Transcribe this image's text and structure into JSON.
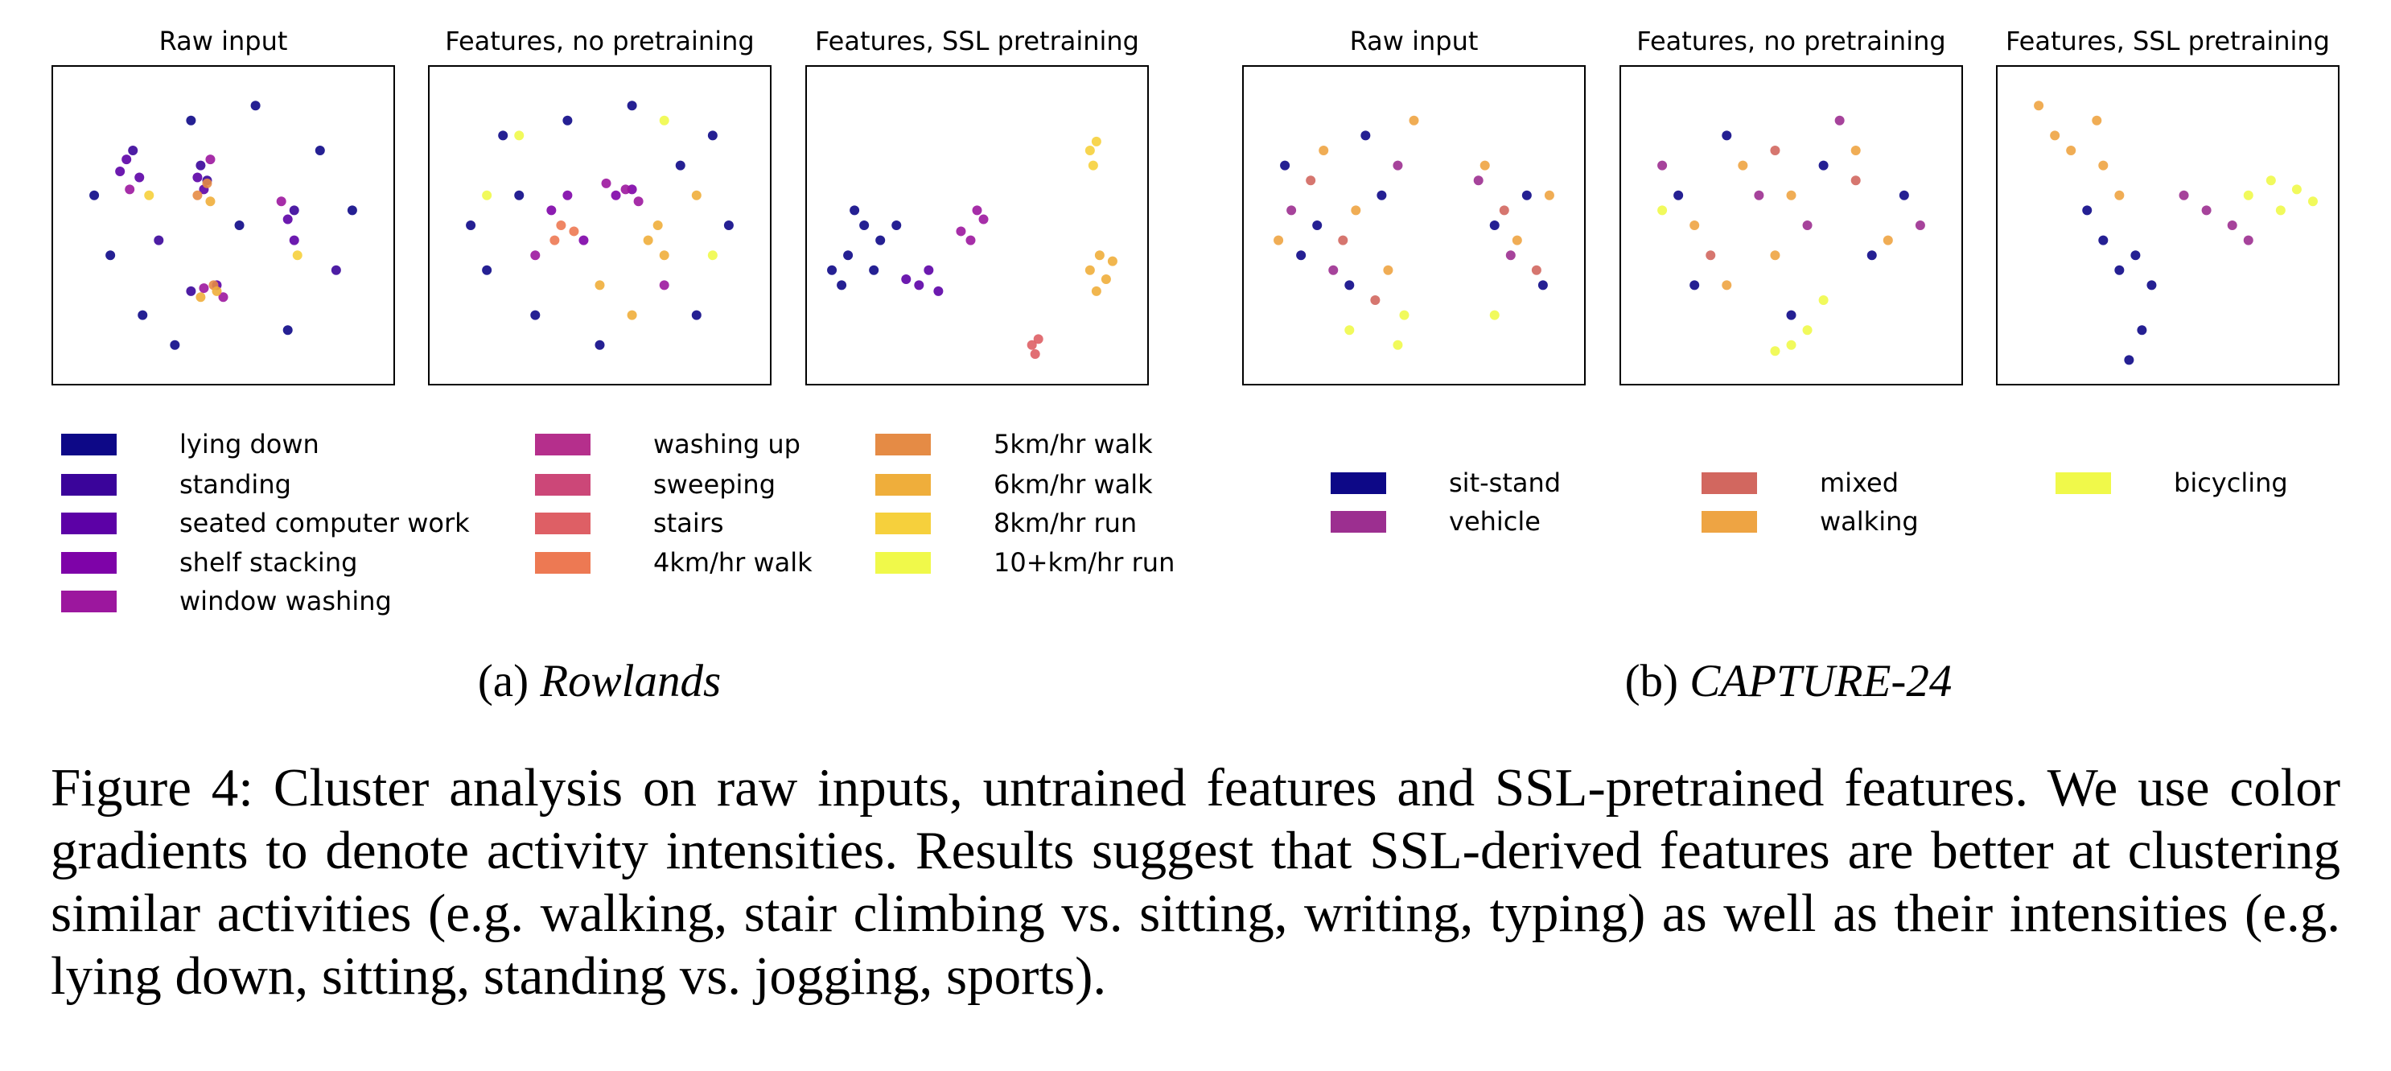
{
  "chart_data": [
    {
      "type": "scatter",
      "title": "Raw input",
      "legend": 0,
      "xlim": [
        0,
        100
      ],
      "ylim": [
        0,
        100
      ],
      "series": [
        {
          "class": 0,
          "x": [
            10,
            25,
            40,
            60,
            80,
            90,
            15,
            55,
            70,
            35
          ],
          "y": [
            60,
            20,
            85,
            90,
            75,
            55,
            40,
            50,
            15,
            10
          ]
        },
        {
          "class": 1,
          "x": [
            43,
            45,
            40,
            22,
            72,
            30,
            85
          ],
          "y": [
            70,
            65,
            28,
            75,
            55,
            45,
            35
          ]
        },
        {
          "class": 2,
          "x": [
            20,
            18,
            24,
            44,
            42,
            70,
            72,
            48
          ],
          "y": [
            72,
            68,
            66,
            62,
            66,
            52,
            45,
            30
          ]
        },
        {
          "class": 4,
          "x": [
            21,
            46,
            68,
            50,
            44
          ],
          "y": [
            62,
            72,
            58,
            26,
            29
          ]
        },
        {
          "class": 9,
          "x": [
            42,
            45,
            47
          ],
          "y": [
            60,
            64,
            30
          ]
        },
        {
          "class": 10,
          "x": [
            46,
            48,
            43
          ],
          "y": [
            58,
            28,
            26
          ]
        },
        {
          "class": 11,
          "x": [
            27,
            73
          ],
          "y": [
            60,
            40
          ]
        }
      ]
    },
    {
      "type": "scatter",
      "title": "Features, no pretraining",
      "legend": 0,
      "xlim": [
        0,
        100
      ],
      "ylim": [
        0,
        100
      ],
      "series": [
        {
          "class": 0,
          "x": [
            10,
            20,
            30,
            80,
            90,
            85,
            15,
            50,
            60,
            25,
            75,
            40
          ],
          "y": [
            50,
            80,
            20,
            20,
            50,
            80,
            35,
            10,
            90,
            60,
            70,
            85
          ]
        },
        {
          "class": 3,
          "x": [
            35,
            40,
            55,
            60,
            45
          ],
          "y": [
            55,
            60,
            60,
            62,
            45
          ]
        },
        {
          "class": 4,
          "x": [
            58,
            62,
            52,
            30,
            70
          ],
          "y": [
            62,
            58,
            64,
            40,
            30
          ]
        },
        {
          "class": 8,
          "x": [
            38,
            42,
            36
          ],
          "y": [
            50,
            48,
            45
          ]
        },
        {
          "class": 10,
          "x": [
            65,
            70,
            68,
            50,
            60,
            80
          ],
          "y": [
            45,
            40,
            50,
            30,
            20,
            60
          ]
        },
        {
          "class": 12,
          "x": [
            25,
            70,
            15,
            85
          ],
          "y": [
            80,
            85,
            60,
            40
          ]
        }
      ]
    },
    {
      "type": "scatter",
      "title": "Features, SSL pretraining",
      "legend": 0,
      "xlim": [
        0,
        100
      ],
      "ylim": [
        0,
        100
      ],
      "series": [
        {
          "class": 0,
          "x": [
            5,
            10,
            15,
            20,
            8,
            12,
            18,
            25
          ],
          "y": [
            35,
            40,
            50,
            45,
            30,
            55,
            35,
            50
          ]
        },
        {
          "class": 2,
          "x": [
            28,
            32,
            38,
            35
          ],
          "y": [
            32,
            30,
            28,
            35
          ]
        },
        {
          "class": 4,
          "x": [
            45,
            50,
            52,
            48
          ],
          "y": [
            48,
            55,
            52,
            45
          ]
        },
        {
          "class": 7,
          "x": [
            67,
            68,
            69
          ],
          "y": [
            10,
            7,
            12
          ]
        },
        {
          "class": 10,
          "x": [
            85,
            88,
            90,
            87,
            92
          ],
          "y": [
            35,
            40,
            32,
            28,
            38
          ]
        },
        {
          "class": 11,
          "x": [
            85,
            86,
            87
          ],
          "y": [
            75,
            70,
            78
          ]
        }
      ]
    },
    {
      "type": "scatter",
      "title": "Raw input",
      "legend": 1,
      "xlim": [
        0,
        100
      ],
      "ylim": [
        0,
        100
      ],
      "series": [
        {
          "class": 0,
          "x": [
            10,
            20,
            30,
            40,
            15,
            35,
            75,
            85,
            90
          ],
          "y": [
            70,
            50,
            30,
            60,
            40,
            80,
            50,
            60,
            30
          ]
        },
        {
          "class": 1,
          "x": [
            12,
            25,
            45,
            80,
            70
          ],
          "y": [
            55,
            35,
            70,
            40,
            65
          ]
        },
        {
          "class": 2,
          "x": [
            18,
            28,
            38,
            78,
            88
          ],
          "y": [
            65,
            45,
            25,
            55,
            35
          ]
        },
        {
          "class": 3,
          "x": [
            8,
            22,
            32,
            42,
            72,
            82,
            92,
            50
          ],
          "y": [
            45,
            75,
            55,
            35,
            70,
            45,
            60,
            85
          ]
        },
        {
          "class": 4,
          "x": [
            30,
            45,
            47,
            75
          ],
          "y": [
            15,
            10,
            20,
            20
          ]
        }
      ]
    },
    {
      "type": "scatter",
      "title": "Features, no pretraining",
      "legend": 1,
      "xlim": [
        0,
        100
      ],
      "ylim": [
        0,
        100
      ],
      "series": [
        {
          "class": 0,
          "x": [
            15,
            30,
            60,
            75,
            85,
            50,
            20
          ],
          "y": [
            60,
            80,
            70,
            40,
            60,
            20,
            30
          ]
        },
        {
          "class": 1,
          "x": [
            10,
            40,
            65,
            90,
            55
          ],
          "y": [
            70,
            60,
            85,
            50,
            50
          ]
        },
        {
          "class": 2,
          "x": [
            25,
            70,
            45
          ],
          "y": [
            40,
            65,
            75
          ]
        },
        {
          "class": 3,
          "x": [
            20,
            35,
            50,
            70,
            80,
            45,
            30
          ],
          "y": [
            50,
            70,
            60,
            75,
            45,
            40,
            30
          ]
        },
        {
          "class": 4,
          "x": [
            50,
            55,
            45,
            10,
            60
          ],
          "y": [
            10,
            15,
            8,
            55,
            25
          ]
        }
      ]
    },
    {
      "type": "scatter",
      "title": "Features, SSL pretraining",
      "legend": 1,
      "xlim": [
        0,
        100
      ],
      "ylim": [
        0,
        100
      ],
      "series": [
        {
          "class": 0,
          "x": [
            25,
            30,
            35,
            40,
            45,
            42,
            38
          ],
          "y": [
            55,
            45,
            35,
            40,
            30,
            15,
            5
          ]
        },
        {
          "class": 1,
          "x": [
            55,
            62,
            70,
            75
          ],
          "y": [
            60,
            55,
            50,
            45
          ]
        },
        {
          "class": 3,
          "x": [
            10,
            15,
            20,
            30,
            35,
            28
          ],
          "y": [
            90,
            80,
            75,
            70,
            60,
            85
          ]
        },
        {
          "class": 4,
          "x": [
            75,
            82,
            90,
            95,
            85
          ],
          "y": [
            60,
            65,
            62,
            58,
            55
          ]
        }
      ]
    }
  ],
  "legends": [
    {
      "entries": [
        {
          "name": "lying down",
          "color": "#0d0887"
        },
        {
          "name": "standing",
          "color": "#3a049a"
        },
        {
          "name": "seated computer work",
          "color": "#5c01a6"
        },
        {
          "name": "shelf stacking",
          "color": "#7e03a8"
        },
        {
          "name": "window washing",
          "color": "#9c179e"
        },
        {
          "name": "washing up",
          "color": "#b52f8c"
        },
        {
          "name": "sweeping",
          "color": "#cc4778"
        },
        {
          "name": "stairs",
          "color": "#de5f65"
        },
        {
          "name": "4km/hr walk",
          "color": "#ed7953"
        },
        {
          "name": "5km/hr walk",
          "color": "#e58b45"
        },
        {
          "name": "6km/hr walk",
          "color": "#efae3b"
        },
        {
          "name": "8km/hr run",
          "color": "#f6d03c"
        },
        {
          "name": "10+km/hr run",
          "color": "#f0f94a"
        }
      ]
    },
    {
      "entries": [
        {
          "name": "sit-stand",
          "color": "#0d0887"
        },
        {
          "name": "vehicle",
          "color": "#9c2f90"
        },
        {
          "name": "mixed",
          "color": "#d2675f"
        },
        {
          "name": "walking",
          "color": "#eea443"
        },
        {
          "name": "bicycling",
          "color": "#f0f94a"
        }
      ]
    }
  ],
  "subcaptions": [
    {
      "label": "(a)",
      "name": "Rowlands"
    },
    {
      "label": "(b)",
      "name": "CAPTURE-24"
    }
  ],
  "caption": {
    "label": "Figure 4:",
    "text": "Cluster analysis on raw inputs, untrained features and SSL-pretrained features. We use color gradients to denote activity intensities. Results suggest that SSL-derived features are better at clustering similar activities (e.g. walking, stair climbing vs. sitting, writing, typing) as well as their intensities (e.g. lying down, sitting, standing vs. jogging, sports)."
  }
}
